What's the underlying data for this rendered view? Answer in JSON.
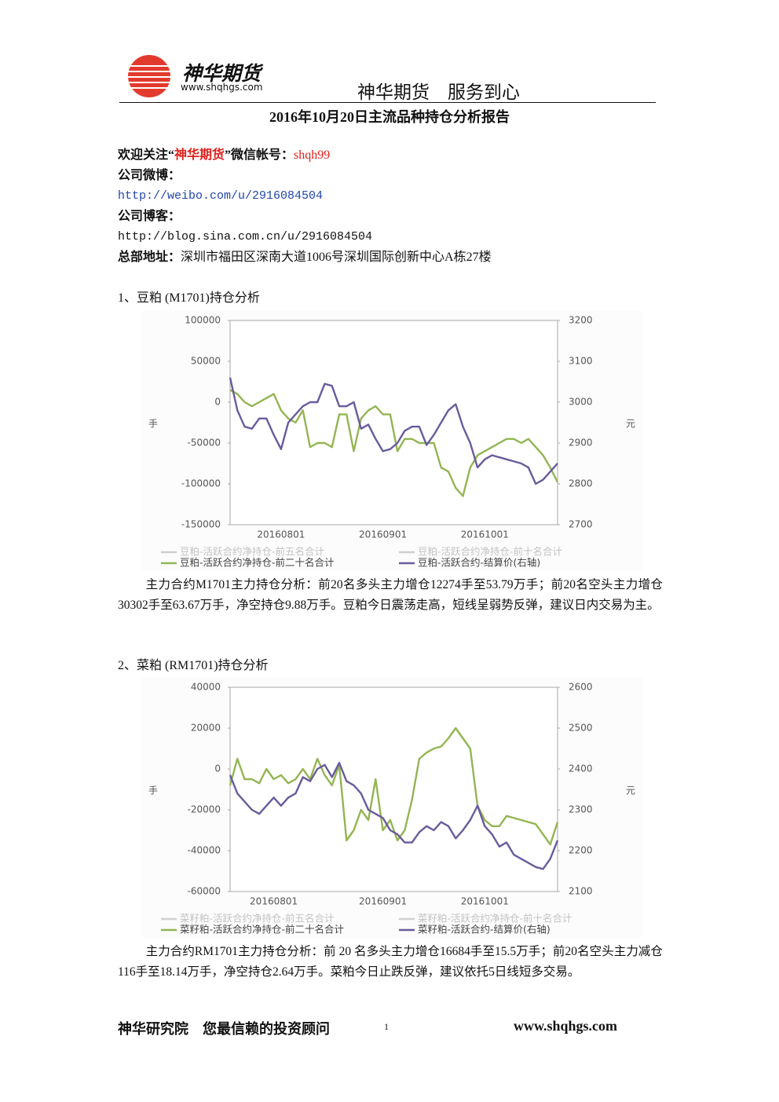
{
  "header": {
    "brand": "神华期货",
    "url": "www.shqhgs.com",
    "slogan": "神华期货　服务到心"
  },
  "title": "2016年10月20日主流品种持仓分析报告",
  "contact": {
    "welcome_prefix": "欢迎关注“",
    "welcome_brand": "神华期货",
    "welcome_suffix": "”微信帐号：",
    "wechat": "shqh99",
    "weibo_label": "公司微博：",
    "weibo_url": "http://weibo.com/u/2916084504",
    "blog_label": "公司博客：",
    "blog_url": "http://blog.sina.com.cn/u/2916084504",
    "address_label": "总部地址：",
    "address": "深圳市福田区深南大道1006号深圳国际创新中心A栋27楼"
  },
  "sections": [
    {
      "heading": "1、豆粕 (M1701)持仓分析",
      "paragraph": "主力合约M1701主力持仓分析：前20名多头主力增仓12274手至53.79万手；前20名空头主力增仓30302手至63.67万手，净空持仓9.88万手。豆粕今日震荡走高，短线呈弱势反弹，建议日内交易为主。"
    },
    {
      "heading": "2、菜粕 (RM1701)持仓分析",
      "paragraph": "主力合约RM1701主力持仓分析：前 20 名多头主力增仓16684手至15.5万手；前20名空头主力减仓116手至18.14万手，净空持仓2.64万手。菜粕今日止跌反弹，建议依托5日线短多交易。"
    }
  ],
  "chart_data": [
    {
      "type": "line",
      "ylabel": "手",
      "y2label": "元",
      "ylim": [
        -150000,
        100000
      ],
      "yticks": [
        -150000,
        -100000,
        -50000,
        0,
        50000,
        100000
      ],
      "y2lim": [
        2700,
        3200
      ],
      "y2ticks": [
        2700,
        2800,
        2900,
        3000,
        3100,
        3200
      ],
      "grid": false,
      "categories": [
        null,
        null,
        null,
        null,
        null,
        null,
        null,
        "20160801",
        null,
        null,
        null,
        null,
        null,
        null,
        null,
        null,
        null,
        null,
        null,
        null,
        null,
        "20160901",
        null,
        null,
        null,
        null,
        null,
        null,
        null,
        null,
        null,
        null,
        null,
        null,
        null,
        "20161001",
        null,
        null,
        null,
        null,
        null,
        null,
        null,
        null,
        null,
        null
      ],
      "series": [
        {
          "name": "豆粕-活跃合约净持仓-前五名合计",
          "color": "#cfcfcf",
          "values": [
            null,
            null,
            null,
            null,
            null,
            null,
            null,
            null,
            null,
            null,
            null,
            null,
            null,
            null,
            null,
            null,
            null,
            null,
            null,
            null,
            null,
            null,
            null,
            null,
            null,
            null,
            null,
            null,
            null,
            null,
            null,
            null,
            null,
            null,
            null,
            null,
            null,
            null,
            null,
            null,
            null,
            null,
            null,
            null,
            null,
            null
          ]
        },
        {
          "name": "豆粕-活跃合约净持仓-前十名合计",
          "color": "#cfcfcf",
          "values": [
            null,
            null,
            null,
            null,
            null,
            null,
            null,
            null,
            null,
            null,
            null,
            null,
            null,
            null,
            null,
            null,
            null,
            null,
            null,
            null,
            null,
            null,
            null,
            null,
            null,
            null,
            null,
            null,
            null,
            null,
            null,
            null,
            null,
            null,
            null,
            null,
            null,
            null,
            null,
            null,
            null,
            null,
            null,
            null,
            null,
            null
          ]
        },
        {
          "name": "豆粕-活跃合约净持仓-前二十名合计",
          "color": "#93b553",
          "values": [
            15000,
            10000,
            0,
            -5000,
            0,
            5000,
            10000,
            -10000,
            -20000,
            -25000,
            -10000,
            -55000,
            -50000,
            -50000,
            -55000,
            -15000,
            -15000,
            -60000,
            -20000,
            -10000,
            -5000,
            -15000,
            -15000,
            -60000,
            -45000,
            -45000,
            -50000,
            -50000,
            -50000,
            -80000,
            -85000,
            -105000,
            -115000,
            -80000,
            -65000,
            -60000,
            -55000,
            -50000,
            -45000,
            -45000,
            -50000,
            -45000,
            -55000,
            -65000,
            -80000,
            -98000
          ]
        },
        {
          "name": "豆粕-活跃合约-结算价(右轴)",
          "color": "#6a5b9c",
          "axis": "y2",
          "values": [
            3060,
            2980,
            2940,
            2935,
            2960,
            2960,
            2920,
            2885,
            2950,
            2970,
            2990,
            3000,
            3000,
            3045,
            3040,
            2990,
            2990,
            3000,
            2935,
            2945,
            2910,
            2880,
            2885,
            2900,
            2930,
            2940,
            2940,
            2895,
            2920,
            2950,
            2980,
            2995,
            2940,
            2900,
            2840,
            2860,
            2870,
            2865,
            2860,
            2855,
            2850,
            2840,
            2800,
            2810,
            2830,
            2850
          ]
        }
      ]
    },
    {
      "type": "line",
      "ylabel": "手",
      "y2label": "元",
      "ylim": [
        -60000,
        40000
      ],
      "yticks": [
        -60000,
        -40000,
        -20000,
        0,
        20000,
        40000
      ],
      "y2lim": [
        2100,
        2600
      ],
      "y2ticks": [
        2100,
        2200,
        2300,
        2400,
        2500,
        2600
      ],
      "grid": false,
      "categories": [
        null,
        null,
        null,
        null,
        null,
        null,
        "20160801",
        null,
        null,
        null,
        null,
        null,
        null,
        null,
        null,
        null,
        null,
        null,
        null,
        null,
        null,
        "20160901",
        null,
        null,
        null,
        null,
        null,
        null,
        null,
        null,
        null,
        null,
        null,
        null,
        null,
        "20161001",
        null,
        null,
        null,
        null,
        null,
        null,
        null,
        null,
        null,
        null
      ],
      "series": [
        {
          "name": "菜籽粕-活跃合约净持仓-前五名合计",
          "color": "#cfcfcf",
          "values": [
            null,
            null,
            null,
            null,
            null,
            null,
            null,
            null,
            null,
            null,
            null,
            null,
            null,
            null,
            null,
            null,
            null,
            null,
            null,
            null,
            null,
            null,
            null,
            null,
            null,
            null,
            null,
            null,
            null,
            null,
            null,
            null,
            null,
            null,
            null,
            null,
            null,
            null,
            null,
            null,
            null,
            null,
            null,
            null,
            null,
            null
          ]
        },
        {
          "name": "菜籽粕-活跃合约净持仓-前十名合计",
          "color": "#cfcfcf",
          "values": [
            null,
            null,
            null,
            null,
            null,
            null,
            null,
            null,
            null,
            null,
            null,
            null,
            null,
            null,
            null,
            null,
            null,
            null,
            null,
            null,
            null,
            null,
            null,
            null,
            null,
            null,
            null,
            null,
            null,
            null,
            null,
            null,
            null,
            null,
            null,
            null,
            null,
            null,
            null,
            null,
            null,
            null,
            null,
            null,
            null,
            null
          ]
        },
        {
          "name": "菜籽粕-活跃合约净持仓-前二十名合计",
          "color": "#93b553",
          "values": [
            -8000,
            5000,
            -5000,
            -5000,
            -7000,
            0,
            -5000,
            -3000,
            -7000,
            -5000,
            0,
            -5000,
            5000,
            -3000,
            -8000,
            2000,
            -35000,
            -30000,
            -20000,
            -25000,
            -5000,
            -30000,
            -25000,
            -35000,
            -30000,
            -15000,
            5000,
            8000,
            10000,
            11000,
            15000,
            20000,
            15000,
            10000,
            -18000,
            -25000,
            -28000,
            -28000,
            -23000,
            -24000,
            -25000,
            -26000,
            -27000,
            -32000,
            -37000,
            -26000
          ]
        },
        {
          "name": "菜籽粕-活跃合约-结算价(右轴)",
          "color": "#6a5b9c",
          "axis": "y2",
          "values": [
            2385,
            2340,
            2320,
            2300,
            2290,
            2310,
            2330,
            2310,
            2330,
            2340,
            2380,
            2370,
            2400,
            2410,
            2380,
            2415,
            2370,
            2360,
            2340,
            2300,
            2290,
            2280,
            2250,
            2240,
            2220,
            2220,
            2245,
            2260,
            2250,
            2270,
            2260,
            2230,
            2250,
            2275,
            2310,
            2260,
            2240,
            2210,
            2220,
            2190,
            2180,
            2170,
            2160,
            2155,
            2180,
            2225
          ]
        }
      ]
    }
  ],
  "footer": {
    "left": "神华研究院　您最信赖的投资顾问",
    "page": "1",
    "url": "www.shqhgs.com"
  }
}
